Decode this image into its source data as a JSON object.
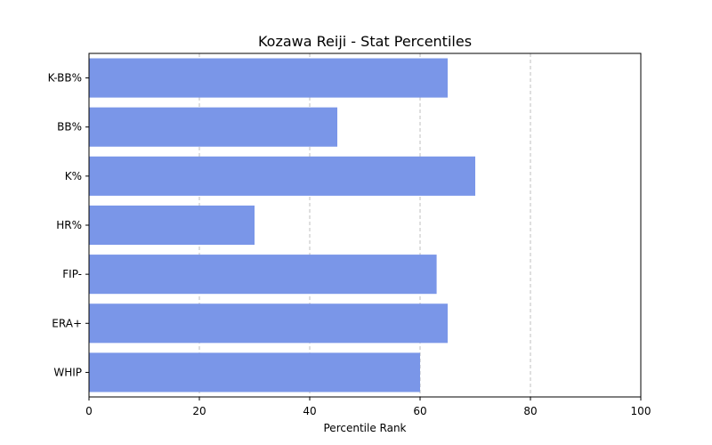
{
  "chart_data": {
    "type": "bar",
    "orientation": "horizontal",
    "title": "Kozawa Reiji - Stat Percentiles",
    "xlabel": "Percentile Rank",
    "ylabel": "",
    "categories": [
      "K-BB%",
      "BB%",
      "K%",
      "HR%",
      "FIP-",
      "ERA+",
      "WHIP"
    ],
    "values": [
      65,
      45,
      70,
      30,
      63,
      65,
      60
    ],
    "xlim": [
      0,
      100
    ],
    "xticks": [
      0,
      20,
      40,
      60,
      80,
      100
    ],
    "grid": "x-dashed",
    "bar_color": "#7a96e8"
  }
}
